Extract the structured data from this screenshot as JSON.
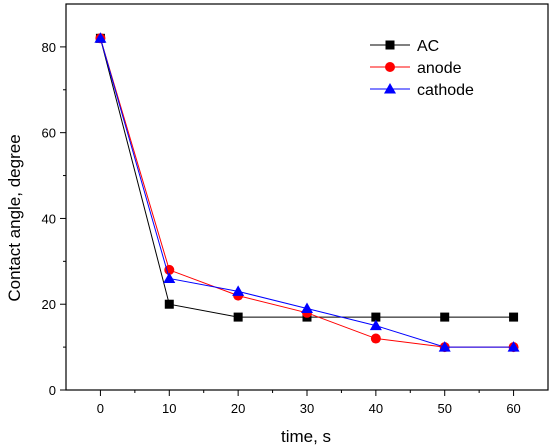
{
  "chart_data": {
    "type": "line",
    "xlabel": "time, s",
    "ylabel": "Contact angle, degree",
    "xlim": [
      -5,
      65
    ],
    "ylim": [
      0,
      90
    ],
    "xticks": [
      0,
      10,
      20,
      30,
      40,
      50,
      60
    ],
    "yticks": [
      0,
      20,
      40,
      60,
      80
    ],
    "grid": false,
    "legend_position": "top-right",
    "x": [
      0,
      10,
      20,
      30,
      40,
      50,
      60
    ],
    "series": [
      {
        "name": "AC",
        "color": "#000000",
        "marker": "square",
        "values": [
          82,
          20,
          17,
          17,
          17,
          17,
          17
        ]
      },
      {
        "name": "anode",
        "color": "#ff0000",
        "marker": "circle",
        "values": [
          82,
          28,
          22,
          18,
          12,
          10,
          10
        ]
      },
      {
        "name": "cathode",
        "color": "#0000ff",
        "marker": "triangle",
        "values": [
          82,
          26,
          23,
          19,
          15,
          10,
          10
        ]
      }
    ]
  }
}
